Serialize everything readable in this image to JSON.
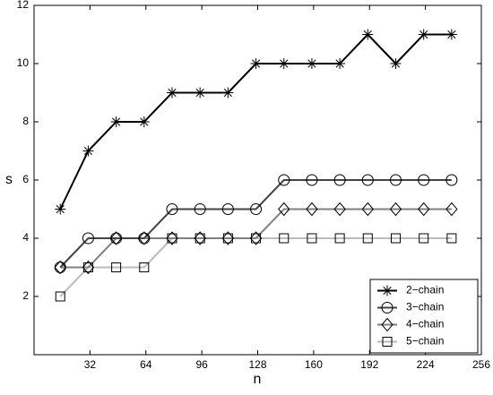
{
  "chart_data": {
    "type": "line",
    "x_label": "n",
    "y_label": "s",
    "x": [
      15,
      31,
      47,
      63,
      79,
      95,
      111,
      127,
      143,
      159,
      175,
      191,
      207,
      223,
      239
    ],
    "series": [
      {
        "name": "2−chain",
        "color": "#000000",
        "marker": "star",
        "values": [
          5,
          7,
          8,
          8,
          9,
          9,
          9,
          10,
          10,
          10,
          10,
          11,
          10,
          11,
          11
        ]
      },
      {
        "name": "3−chain",
        "color": "#444444",
        "marker": "circle",
        "values": [
          3,
          4,
          4,
          4,
          5,
          5,
          5,
          5,
          6,
          6,
          6,
          6,
          6,
          6,
          6
        ]
      },
      {
        "name": "4−chain",
        "color": "#808080",
        "marker": "diamond",
        "values": [
          3,
          3,
          4,
          4,
          4,
          4,
          4,
          4,
          5,
          5,
          5,
          5,
          5,
          5,
          5
        ]
      },
      {
        "name": "5−chain",
        "color": "#bbbbbb",
        "marker": "square",
        "values": [
          2,
          3,
          3,
          3,
          4,
          4,
          4,
          4,
          4,
          4,
          4,
          4,
          4,
          4,
          4
        ]
      }
    ],
    "xlim": [
      0,
      256
    ],
    "ylim": [
      0,
      12
    ],
    "xticks": [
      32,
      64,
      96,
      128,
      160,
      192,
      224,
      256
    ],
    "yticks": [
      2,
      4,
      6,
      8,
      10,
      12
    ],
    "legend": "lower right"
  }
}
